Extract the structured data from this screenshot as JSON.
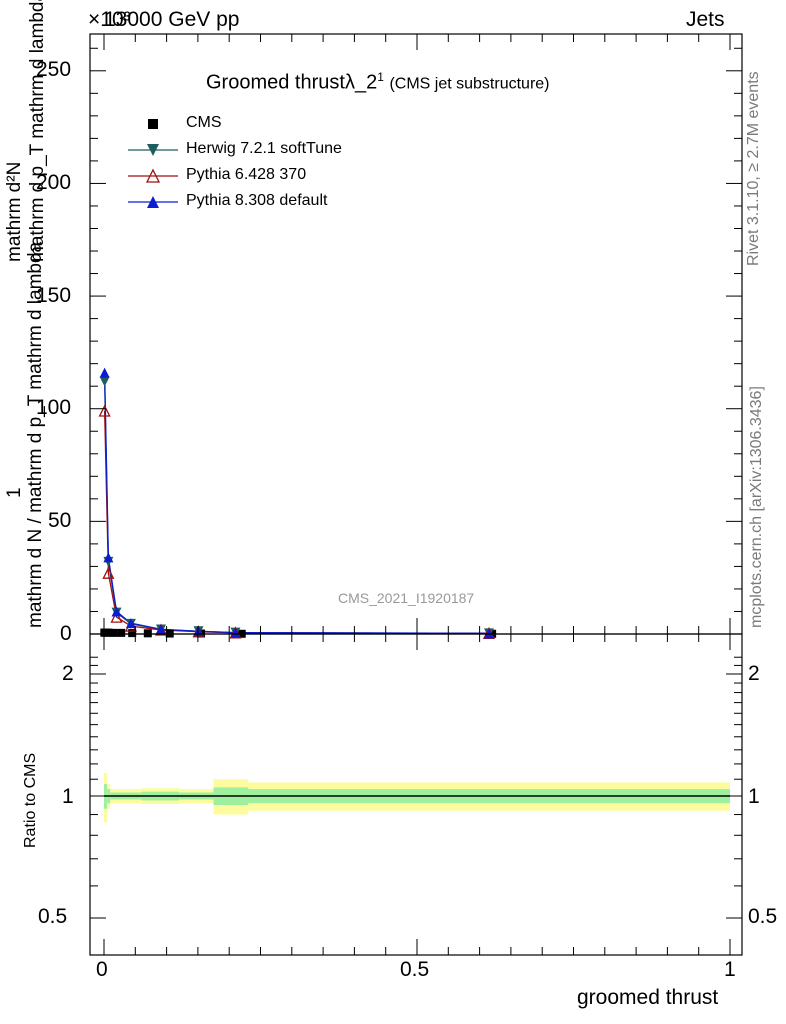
{
  "header": {
    "energy": "13000 GeV pp",
    "process": "Jets",
    "exponent": "×10³"
  },
  "side_text": {
    "rivet": "Rivet 3.1.10, ≥ 2.7M events",
    "source": "mcplots.cern.ch [arXiv:1306.3436]"
  },
  "watermark": "CMS_2021_I1920187",
  "chart_data": [
    {
      "type": "line",
      "title_main": "Groomed thrust",
      "title_symbol": "λ_2",
      "title_sup": "1",
      "title_sub": "(CMS jet substructure)",
      "ylabel_line1": "1",
      "ylabel_line2": "mathrm d N / mathrm d p_T mathrm d lambda",
      "ylabel_num": "mathrm d²N",
      "ylabel_den": "mathrm d p_T mathrm d lambda",
      "xlim": [
        0,
        1
      ],
      "ylim": [
        0,
        265
      ],
      "y_scale_note": "×10³",
      "y_ticks": [
        0,
        50,
        100,
        150,
        200,
        250
      ],
      "legend_placement": "top-left",
      "legend": [
        {
          "label": "CMS",
          "marker": "square",
          "color": "#000000"
        },
        {
          "label": "Herwig 7.2.1 softTune",
          "marker": "triangle-down",
          "color": "#1e5e5e"
        },
        {
          "label": "Pythia 6.428 370",
          "marker": "triangle-open",
          "color": "#a01010"
        },
        {
          "label": "Pythia 8.308 default",
          "marker": "triangle-up",
          "color": "#0a1ed0"
        }
      ],
      "series": [
        {
          "name": "CMS",
          "x": [
            0.0005,
            0.0015,
            0.0035,
            0.0075,
            0.015,
            0.0275,
            0.045,
            0.07,
            0.105,
            0.155,
            0.22,
            0.62
          ],
          "y": [
            0.6,
            0.6,
            0.6,
            0.6,
            0.5,
            0.5,
            0.4,
            0.3,
            0.2,
            0.2,
            0.1,
            0.1
          ]
        },
        {
          "name": "Herwig 7.2.1 softTune",
          "x": [
            0.001,
            0.007,
            0.02,
            0.043,
            0.091,
            0.151,
            0.21,
            0.615
          ],
          "y": [
            112,
            32,
            9.5,
            4.5,
            2.0,
            1.2,
            0.6,
            0.3
          ]
        },
        {
          "name": "Pythia 6.428 370",
          "x": [
            0.001,
            0.007,
            0.02,
            0.043,
            0.091,
            0.151,
            0.21,
            0.615
          ],
          "y": [
            99,
            27,
            7.5,
            3.5,
            1.8,
            1.0,
            0.5,
            0.3
          ]
        },
        {
          "name": "Pythia 8.308 default",
          "x": [
            0.001,
            0.007,
            0.02,
            0.043,
            0.091,
            0.151,
            0.21,
            0.615
          ],
          "y": [
            116,
            34,
            10,
            4.8,
            2.1,
            1.2,
            0.6,
            0.3
          ]
        }
      ]
    },
    {
      "type": "area",
      "ylabel": "Ratio to CMS",
      "xlabel": "groomed thrust",
      "xlim": [
        0,
        1
      ],
      "ylim": [
        0.4,
        2.3
      ],
      "x_ticks": [
        0,
        0.5,
        1
      ],
      "x_tick_labels": [
        "0",
        "0.5",
        "1"
      ],
      "y_ticks": [
        0.5,
        1,
        2
      ],
      "y_tick_labels": [
        "0.5",
        "1",
        "2"
      ],
      "reference": 1,
      "bands": [
        {
          "x0": 0.0,
          "x1": 0.005,
          "stat_lo": 0.93,
          "stat_hi": 1.07,
          "tot_lo": 0.86,
          "tot_hi": 1.14
        },
        {
          "x0": 0.005,
          "x1": 0.01,
          "stat_lo": 0.96,
          "stat_hi": 1.04,
          "tot_lo": 0.93,
          "tot_hi": 1.07
        },
        {
          "x0": 0.01,
          "x1": 0.06,
          "stat_lo": 0.98,
          "stat_hi": 1.02,
          "tot_lo": 0.96,
          "tot_hi": 1.04
        },
        {
          "x0": 0.06,
          "x1": 0.12,
          "stat_lo": 0.975,
          "stat_hi": 1.025,
          "tot_lo": 0.955,
          "tot_hi": 1.045
        },
        {
          "x0": 0.12,
          "x1": 0.175,
          "stat_lo": 0.98,
          "stat_hi": 1.02,
          "tot_lo": 0.96,
          "tot_hi": 1.04
        },
        {
          "x0": 0.175,
          "x1": 0.23,
          "stat_lo": 0.95,
          "stat_hi": 1.05,
          "tot_lo": 0.9,
          "tot_hi": 1.1
        },
        {
          "x0": 0.23,
          "x1": 1.0,
          "stat_lo": 0.96,
          "stat_hi": 1.04,
          "tot_lo": 0.92,
          "tot_hi": 1.08
        }
      ]
    }
  ]
}
